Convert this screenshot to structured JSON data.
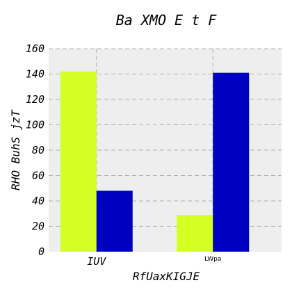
{
  "chart_data": {
    "type": "bar",
    "title": "Ba XMO E t F",
    "xlabel": "RfUaxKIGJE",
    "ylabel": "RHO  BuhS jzT",
    "categories": [
      "IUV",
      "LWpa"
    ],
    "series": [
      {
        "values": [
          142,
          29
        ],
        "color": "#d4ff24"
      },
      {
        "values": [
          48,
          141
        ],
        "color": "#0000c0"
      }
    ],
    "ylim": [
      0,
      160
    ],
    "yticks": [
      0,
      20,
      40,
      60,
      80,
      100,
      120,
      140,
      160
    ],
    "grid": true,
    "plot_background": "#eeeeee",
    "grid_color": "#b0b0b0"
  }
}
